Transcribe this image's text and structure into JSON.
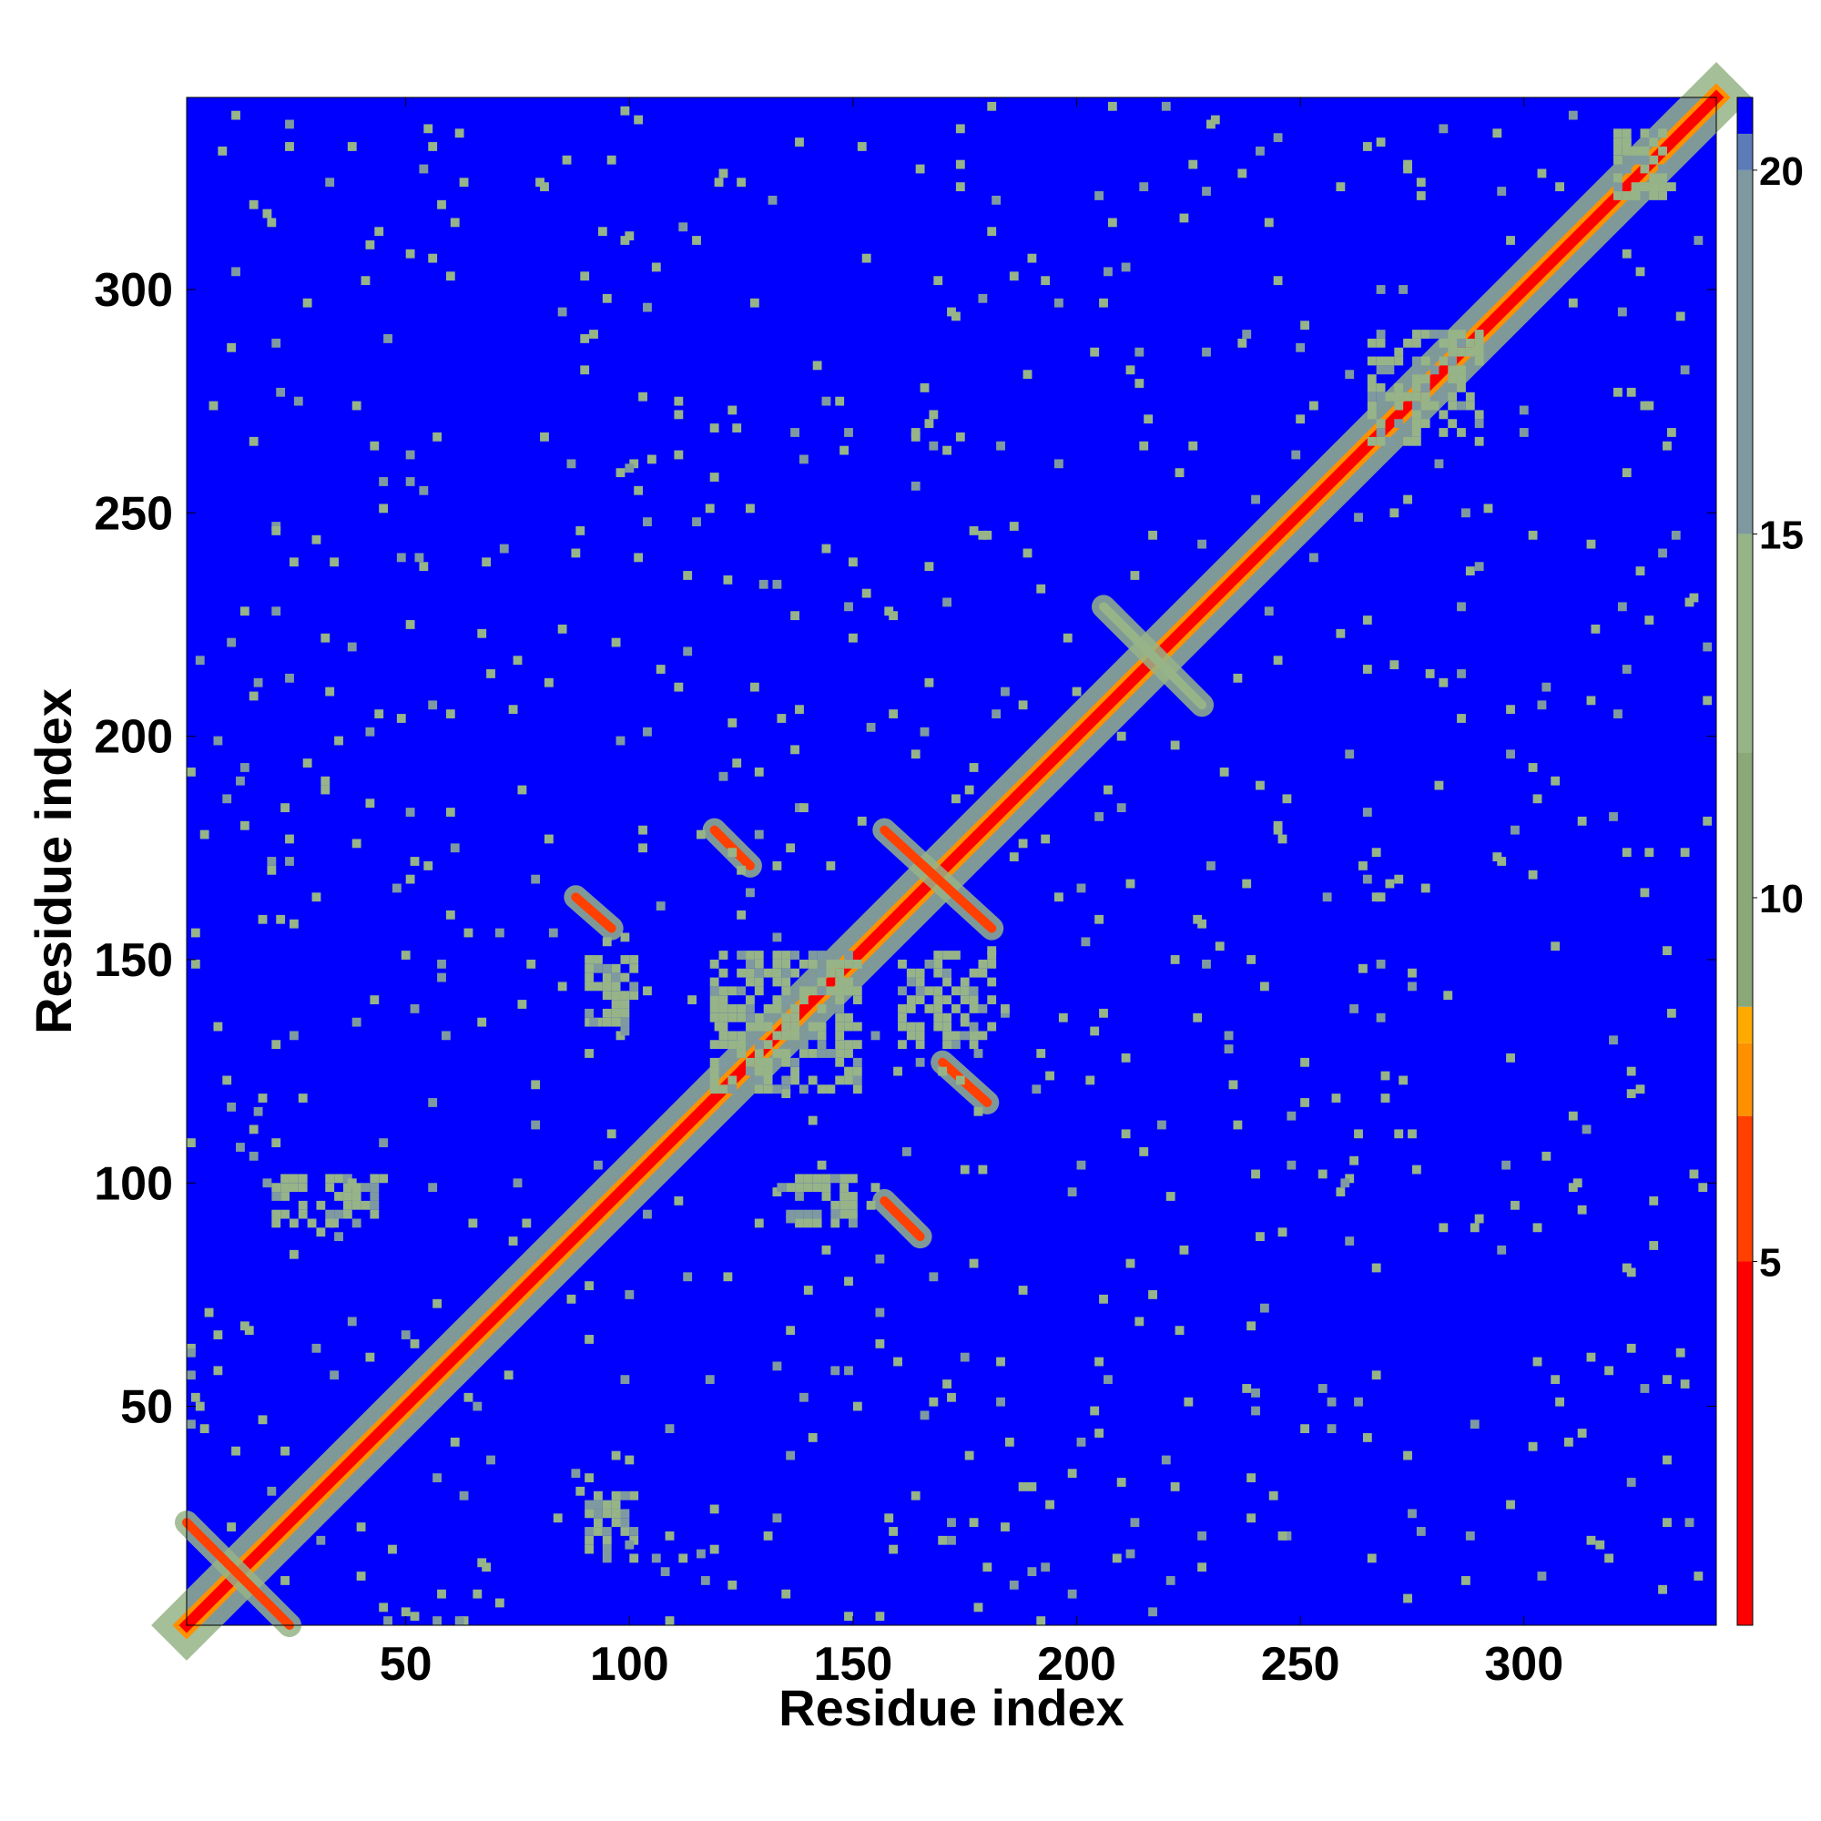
{
  "chart_data": {
    "type": "heatmap",
    "title": "",
    "xlabel": "Residue index",
    "ylabel": "Residue index",
    "xlim": [
      1,
      343
    ],
    "ylim": [
      1,
      343
    ],
    "x_ticks": [
      50,
      100,
      150,
      200,
      250,
      300
    ],
    "y_ticks": [
      50,
      100,
      150,
      200,
      250,
      300
    ],
    "colorbar": {
      "min": 0,
      "max": 21,
      "ticks": [
        5,
        10,
        15,
        20
      ],
      "stops": [
        {
          "value": 0,
          "color": "#ff0000"
        },
        {
          "value": 5,
          "color": "#ff4000"
        },
        {
          "value": 7,
          "color": "#ff9000"
        },
        {
          "value": 8,
          "color": "#ffaa00"
        },
        {
          "value": 8.5,
          "color": "#8aa878"
        },
        {
          "value": 12,
          "color": "#96b488"
        },
        {
          "value": 15,
          "color": "#7e9aa0"
        },
        {
          "value": 20,
          "color": "#5c7cb8"
        },
        {
          "value": 20.5,
          "color": "#0000ff"
        },
        {
          "value": 21,
          "color": "#0000ff"
        }
      ]
    },
    "background_value": 21,
    "background_color": "#0000ff",
    "features": [
      {
        "kind": "diagonal",
        "from": 1,
        "to": 343,
        "core_value": 1,
        "halo_value": 12
      },
      {
        "kind": "antidiagonal",
        "x": [
          1,
          24
        ],
        "y": [
          24,
          1
        ],
        "value": 6
      },
      {
        "kind": "antidiagonal",
        "x": [
          88,
          96
        ],
        "y": [
          164,
          157
        ],
        "value": 6
      },
      {
        "kind": "antidiagonal",
        "x": [
          119,
          127
        ],
        "y": [
          179,
          171
        ],
        "value": 6
      },
      {
        "kind": "antidiagonal",
        "x": [
          157,
          181
        ],
        "y": [
          179,
          157
        ],
        "value": 6
      },
      {
        "kind": "antidiagonal",
        "x": [
          170,
          180
        ],
        "y": [
          127,
          118
        ],
        "value": 6
      },
      {
        "kind": "antidiagonal",
        "x": [
          157,
          165
        ],
        "y": [
          96,
          88
        ],
        "value": 6
      },
      {
        "kind": "antidiagonal",
        "x": [
          206,
          228
        ],
        "y": [
          229,
          207
        ],
        "value": 12
      },
      {
        "kind": "blob",
        "x": [
          118,
          150
        ],
        "y": [
          120,
          150
        ],
        "value": 12
      },
      {
        "kind": "blob",
        "x": [
          265,
          290
        ],
        "y": [
          265,
          290
        ],
        "value": 12
      },
      {
        "kind": "blob",
        "x": [
          90,
          100
        ],
        "y": [
          135,
          150
        ],
        "value": 12
      },
      {
        "kind": "blob",
        "x": [
          160,
          180
        ],
        "y": [
          130,
          150
        ],
        "value": 12
      },
      {
        "kind": "blob",
        "x": [
          90,
          100
        ],
        "y": [
          15,
          30
        ],
        "value": 12
      },
      {
        "kind": "blob",
        "x": [
          20,
          45
        ],
        "y": [
          90,
          100
        ],
        "value": 12
      },
      {
        "kind": "blob",
        "x": [
          135,
          150
        ],
        "y": [
          90,
          100
        ],
        "value": 12
      },
      {
        "kind": "blob",
        "x": [
          320,
          330
        ],
        "y": [
          320,
          335
        ],
        "value": 12
      }
    ]
  }
}
